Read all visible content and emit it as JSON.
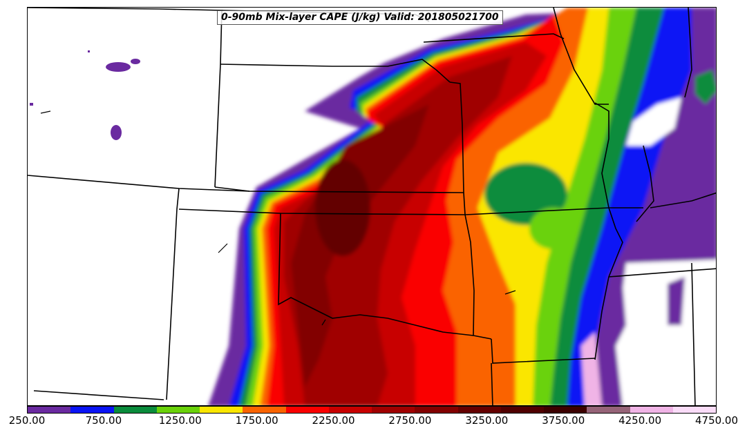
{
  "title": "0-90mb Mix-layer CAPE (J/kg) Valid: 201805021700",
  "colorbar": {
    "colors": [
      "#6a2aa0",
      "#0a14f5",
      "#0a8c3c",
      "#6ad20a",
      "#fae600",
      "#fa6400",
      "#fa0000",
      "#c80000",
      "#a00000",
      "#820000",
      "#640000",
      "#500000",
      "#3c0000",
      "#966478",
      "#f0b4e6",
      "#fadcf8"
    ],
    "tick_labels": [
      "250.00",
      "750.00",
      "1250.00",
      "1750.00",
      "2250.00",
      "2750.00",
      "3250.00",
      "3750.00",
      "4250.00",
      "4750.00"
    ]
  },
  "legend_scale": {
    "min": 250,
    "max": 4750,
    "interval": 250,
    "units": "J/kg"
  }
}
